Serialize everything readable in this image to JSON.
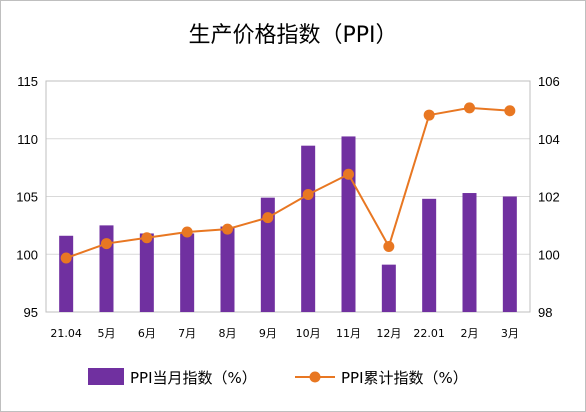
{
  "chart_data": {
    "type": "bar+line",
    "title": "生产价格指数（PPI）",
    "categories": [
      "21.04",
      "5月",
      "6月",
      "7月",
      "8月",
      "9月",
      "10月",
      "11月",
      "12月",
      "22.01",
      "2月",
      "3月"
    ],
    "series": [
      {
        "name": "PPI当月指数（%）",
        "type": "bar",
        "axis": "left",
        "color": "#7030a0",
        "values": [
          101.6,
          102.5,
          101.8,
          101.8,
          102.4,
          104.9,
          109.4,
          110.2,
          99.1,
          104.8,
          105.3,
          105.0
        ]
      },
      {
        "name": "PPI累计指数（%）",
        "type": "line",
        "axis": "right",
        "color": "#e87722",
        "values": [
          99.87,
          100.37,
          100.57,
          100.77,
          100.87,
          101.27,
          102.07,
          102.77,
          100.27,
          104.82,
          105.07,
          104.97
        ]
      }
    ],
    "y_left": {
      "min": 95,
      "max": 115,
      "step": 5,
      "ticks": [
        "95",
        "100",
        "105",
        "110",
        "115"
      ]
    },
    "y_right": {
      "min": 98,
      "max": 106,
      "step": 2,
      "ticks": [
        "98",
        "100",
        "102",
        "104",
        "106"
      ]
    },
    "grid": true,
    "legend": "bottom"
  }
}
